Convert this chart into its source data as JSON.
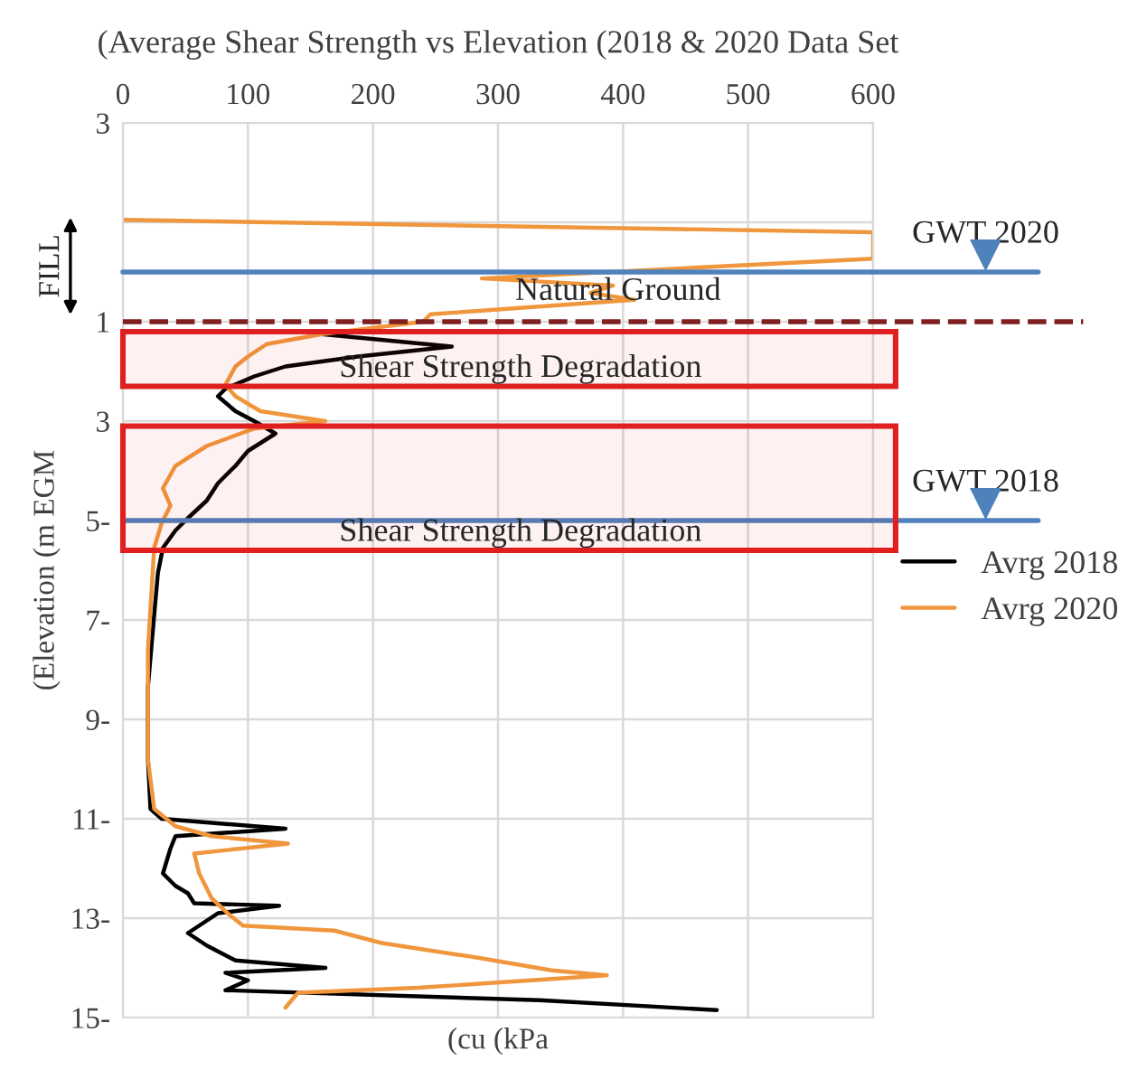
{
  "chart_data": {
    "type": "line",
    "title": "(Average Shear Strength vs Elevation (2018 & 2020 Data Set",
    "xlabel": "(cu (kPa",
    "ylabel": "(Elevation (m EGM",
    "orientation": "horizontal",
    "xlim": [
      0,
      600
    ],
    "xticks": [
      0,
      100,
      200,
      300,
      400,
      500,
      600
    ],
    "ylim": [
      -15,
      3
    ],
    "yticks": [
      {
        "value": 3,
        "label": "3"
      },
      {
        "value": 1,
        "label": null
      },
      {
        "value": -1,
        "label": "1"
      },
      {
        "value": -3,
        "label": "3"
      },
      {
        "value": -5,
        "label": "5-"
      },
      {
        "value": -7,
        "label": "7-"
      },
      {
        "value": -9,
        "label": "9-"
      },
      {
        "value": -11,
        "label": "11-"
      },
      {
        "value": -13,
        "label": "13-"
      },
      {
        "value": -15,
        "label": "15-"
      }
    ],
    "grid": true,
    "legend": "right",
    "annotations": [
      "FILL"
    ],
    "series": [
      {
        "name": "Avrg 2018",
        "color": "#000000",
        "x": [
          -1.25,
          -1.5,
          -1.7,
          -1.9,
          -2.1,
          -2.35,
          -2.5,
          -2.8,
          -3.0,
          -3.25,
          -3.6,
          -3.9,
          -4.25,
          -4.6,
          -4.95,
          -5.2,
          -5.55,
          -6.05,
          -6.9,
          -8.35,
          -9.8,
          -10.8,
          -11.0,
          -11.2,
          -11.35,
          -11.6,
          -12.1,
          -12.35,
          -12.5,
          -12.7,
          -12.75,
          -12.9,
          -13.05,
          -13.3,
          -13.55,
          -13.85,
          -14.0,
          -14.1,
          -14.25,
          -14.45,
          -14.65,
          -14.85
        ],
        "values": [
          159,
          263,
          188,
          130,
          105,
          82,
          76,
          90,
          105,
          122,
          100,
          90,
          76,
          67,
          52,
          42,
          32,
          28,
          25,
          20,
          20,
          22,
          31,
          130,
          42,
          38,
          32,
          42,
          52,
          57,
          125,
          76,
          67,
          52,
          67,
          90,
          162,
          82,
          100,
          82,
          333,
          475
        ]
      },
      {
        "name": "Avrg 2020",
        "color": "#f0963c",
        "x": [
          1.05,
          0.8,
          0.27,
          -0.13,
          -0.27,
          -0.42,
          -0.56,
          -0.85,
          -1.0,
          -1.25,
          -1.45,
          -1.7,
          -1.9,
          -2.27,
          -2.5,
          -2.8,
          -3.0,
          -3.15,
          -3.5,
          -3.9,
          -4.35,
          -4.7,
          -5.05,
          -5.55,
          -7.6,
          -9.8,
          -10.8,
          -11.15,
          -11.35,
          -11.5,
          -11.7,
          -12.1,
          -12.6,
          -12.95,
          -13.15,
          -13.25,
          -13.5,
          -13.8,
          -14.05,
          -14.15,
          -14.4,
          -14.5,
          -14.8
        ],
        "values": [
          0,
          600,
          600,
          287,
          392,
          374,
          409,
          246,
          240,
          159,
          115,
          100,
          90,
          82,
          90,
          110,
          162,
          105,
          67,
          42,
          32,
          38,
          31,
          25,
          20,
          20,
          25,
          42,
          71,
          132,
          57,
          61,
          71,
          86,
          96,
          169,
          207,
          285,
          343,
          387,
          236,
          140,
          130
        ]
      }
    ],
    "ref_lines": [
      {
        "axis": "y",
        "value": 0.0,
        "label": "GWT 2020",
        "color": "#4f81bd",
        "line_style": "solid"
      },
      {
        "axis": "y",
        "value": -1.0,
        "label": "Natural Ground",
        "color": "#7f1f1f",
        "line_style": "dashed"
      },
      {
        "axis": "y",
        "value": -5.0,
        "label": "GWT 2018",
        "color": "#4f81bd",
        "line_style": "solid"
      }
    ],
    "bands": [
      {
        "axis": "y",
        "from": -1.2,
        "to": -2.3,
        "label": "Shear Strength Degradation",
        "color": "#e02020"
      },
      {
        "axis": "y",
        "from": -3.1,
        "to": -5.6,
        "label": "Shear Strength Degradation",
        "color": "#e02020"
      }
    ]
  }
}
